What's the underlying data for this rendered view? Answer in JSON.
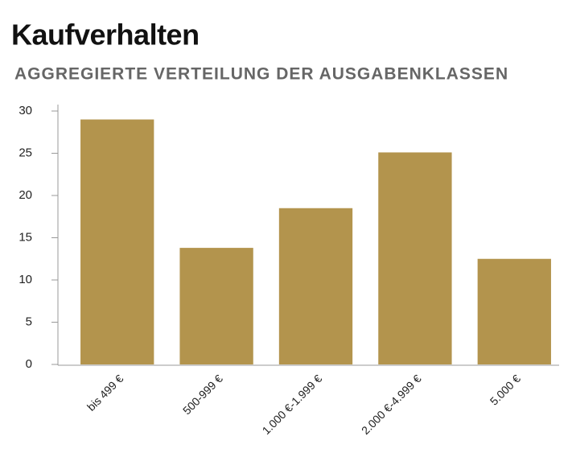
{
  "chart_data": {
    "type": "bar",
    "title": "Kaufverhalten",
    "subtitle": "AGGREGIERTE VERTEILUNG DER AUSGABENKLASSEN",
    "categories": [
      "bis 499 €",
      "500-999 €",
      "1.000 €-1.999 €",
      "2.000 €-4.999 €",
      "5.000 €"
    ],
    "values": [
      29,
      13.8,
      18.5,
      25.1,
      12.5
    ],
    "color": "#b3944d",
    "ylim": [
      0,
      30
    ],
    "yticks": [
      0,
      5,
      10,
      15,
      20,
      25,
      30
    ],
    "grid": false
  }
}
